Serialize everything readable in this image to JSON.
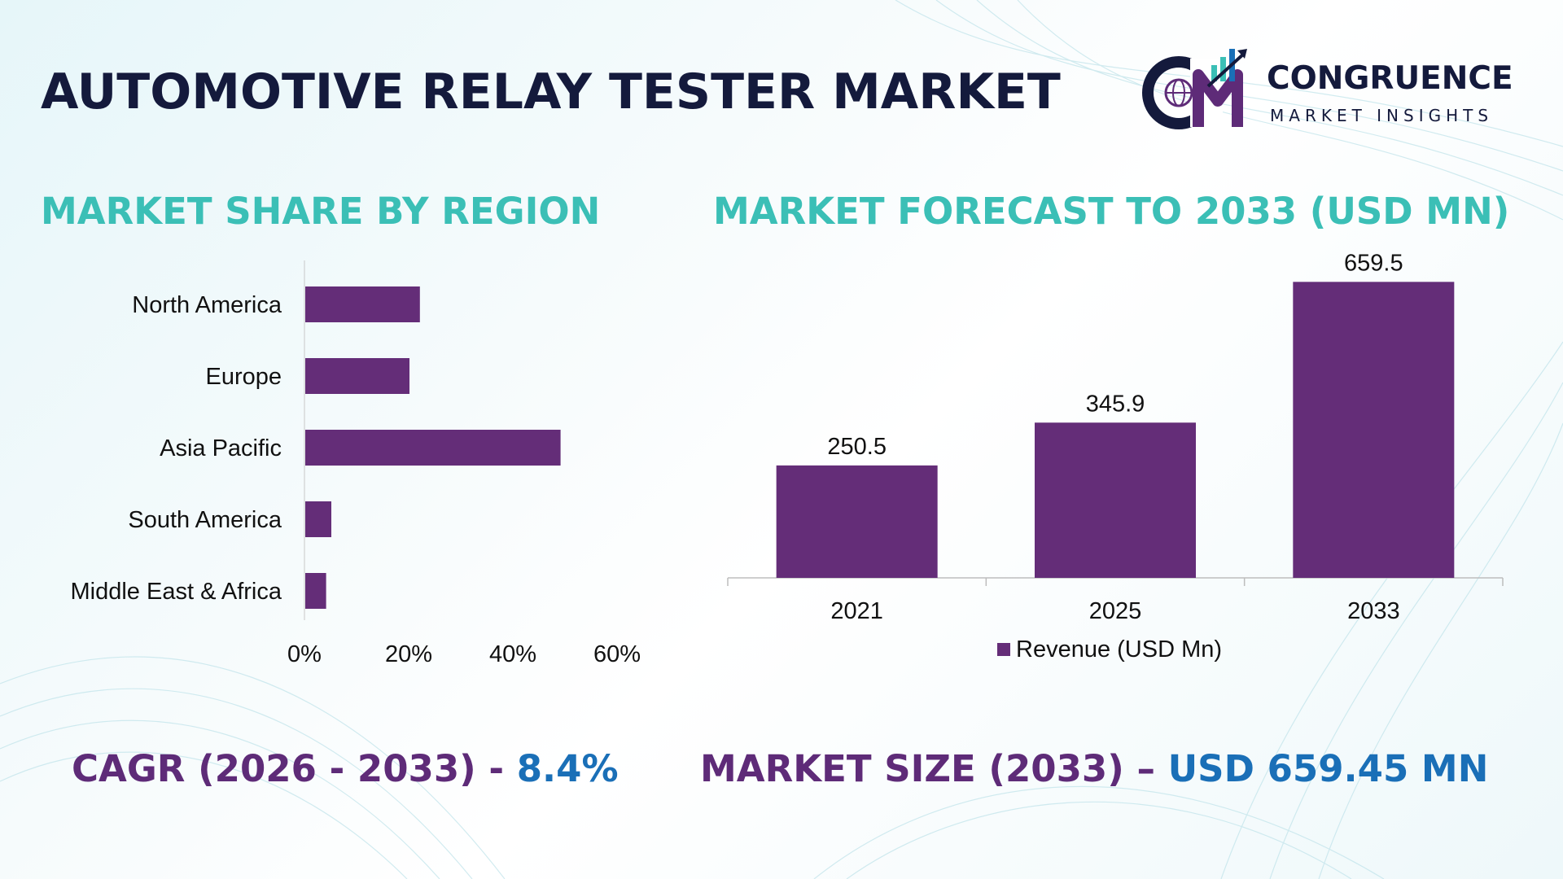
{
  "title": "AUTOMOTIVE RELAY TESTER MARKET",
  "brand": {
    "name": "CONGRUENCE",
    "tagline": "MARKET INSIGHTS",
    "logo_letters": "CM"
  },
  "colors": {
    "bar": "#642d78",
    "teal": "#3bbfb6",
    "navy": "#141a3c",
    "purple_text": "#5e2b78",
    "blue_text": "#1a6fb7"
  },
  "chart_data": [
    {
      "type": "bar",
      "orientation": "horizontal",
      "title": "MARKET SHARE BY REGION",
      "categories": [
        "North America",
        "Europe",
        "Asia Pacific",
        "South America",
        "Middle East & Africa"
      ],
      "values": [
        22,
        20,
        49,
        5,
        4
      ],
      "xlim": [
        0,
        60
      ],
      "xticks": [
        "0%",
        "20%",
        "40%",
        "60%"
      ],
      "grid": false
    },
    {
      "type": "bar",
      "title": "MARKET FORECAST TO 2033 (USD MN)",
      "categories": [
        "2021",
        "2025",
        "2033"
      ],
      "series": [
        {
          "name": "Revenue (USD Mn)",
          "values": [
            250.5,
            345.9,
            659.5
          ]
        }
      ],
      "data_labels": [
        "250.5",
        "345.9",
        "659.5"
      ],
      "ylim": [
        0,
        700
      ],
      "legend": "bottom",
      "grid": false
    }
  ],
  "footer": {
    "cagr_label": "CAGR (2026 - 2033) - ",
    "cagr_value": "8.4%",
    "size_label": "MARKET SIZE (2033) – ",
    "size_value": "USD 659.45 MN"
  }
}
